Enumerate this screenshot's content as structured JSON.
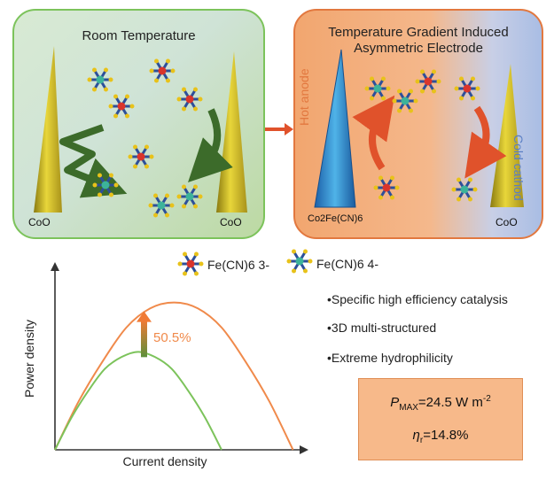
{
  "left_panel": {
    "title": "Room Temperature",
    "left_label": "CoO",
    "right_label": "CoO"
  },
  "right_panel": {
    "title_line1": "Temperature Gradient Induced",
    "title_line2": "Asymmetric Electrode",
    "hot_label": "Hot anode",
    "cold_label": "Cold cathod",
    "anode_material": "Co2Fe(CN)6",
    "cathode_label": "CoO"
  },
  "legend": {
    "ferricyanide": "Fe(CN)6 3-",
    "ferrocyanide": "Fe(CN)6 4-"
  },
  "chart_data": {
    "type": "line",
    "xlabel": "Current density",
    "ylabel": "Power density",
    "annotation": "50.5%",
    "series": [
      {
        "color": "#f08a4b",
        "x": [
          0,
          0.1,
          0.2,
          0.3,
          0.4,
          0.5,
          0.6,
          0.7,
          0.8,
          0.9,
          1.0
        ],
        "y": [
          0,
          0.33,
          0.6,
          0.83,
          0.96,
          1.0,
          0.96,
          0.83,
          0.6,
          0.33,
          0
        ]
      },
      {
        "color": "#7cc35b",
        "x": [
          0,
          0.07,
          0.14,
          0.21,
          0.28,
          0.35,
          0.42,
          0.49,
          0.56,
          0.63,
          0.7
        ],
        "y": [
          0,
          0.22,
          0.4,
          0.55,
          0.63,
          0.665,
          0.63,
          0.55,
          0.4,
          0.22,
          0
        ]
      }
    ],
    "xlim": [
      0,
      1.05
    ],
    "ylim": [
      0,
      1.25
    ]
  },
  "features": [
    "•Specific high efficiency catalysis",
    "•3D multi-structured",
    "•Extreme hydrophilicity"
  ],
  "metrics": {
    "pmax_symbol": "P",
    "pmax_sub": "MAX",
    "pmax_value": "=24.5 W m",
    "pmax_exp": "-2",
    "eta_symbol": "η",
    "eta_sub": "r",
    "eta_value": "=14.8%"
  },
  "colors": {
    "hot": "#e2783f",
    "cold": "#8aa6d8",
    "green": "#7cc35b",
    "arrow_red": "#e0522b",
    "arrow_green": "#3c6b2a"
  }
}
